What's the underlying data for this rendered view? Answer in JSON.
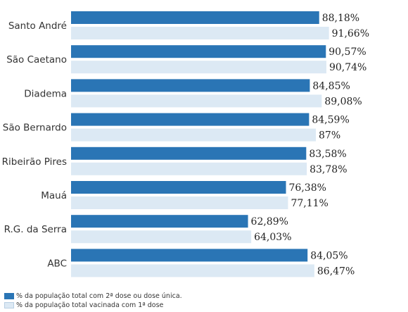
{
  "chart_data": {
    "type": "bar",
    "orientation": "horizontal",
    "categories": [
      "Santo André",
      "São Caetano",
      "Diadema",
      "São Bernardo",
      "Ribeirão Pires",
      "Mauá",
      "R.G. da Serra",
      "ABC"
    ],
    "series": [
      {
        "name": "% da população total com 2ª dose ou dose única.",
        "color": "#2a75b5",
        "values": [
          88.18,
          90.57,
          84.85,
          84.59,
          83.58,
          76.38,
          62.89,
          84.05
        ],
        "labels": [
          "88,18%",
          "90,57%",
          "84,85%",
          "84,59%",
          "83,58%",
          "76,38%",
          "62,89%",
          "84,05%"
        ]
      },
      {
        "name": "% da população total vacinada com 1ª dose",
        "color": "#dce9f4",
        "values": [
          91.66,
          90.74,
          89.08,
          87,
          83.78,
          77.11,
          64.03,
          86.47
        ],
        "labels": [
          "91,66%",
          "90,74%",
          "89,08%",
          "87%",
          "83,78%",
          "77,11%",
          "64,03%",
          "86,47%"
        ]
      }
    ],
    "xlim": [
      0,
      100
    ],
    "grid": false,
    "legend_position": "bottom-left"
  }
}
